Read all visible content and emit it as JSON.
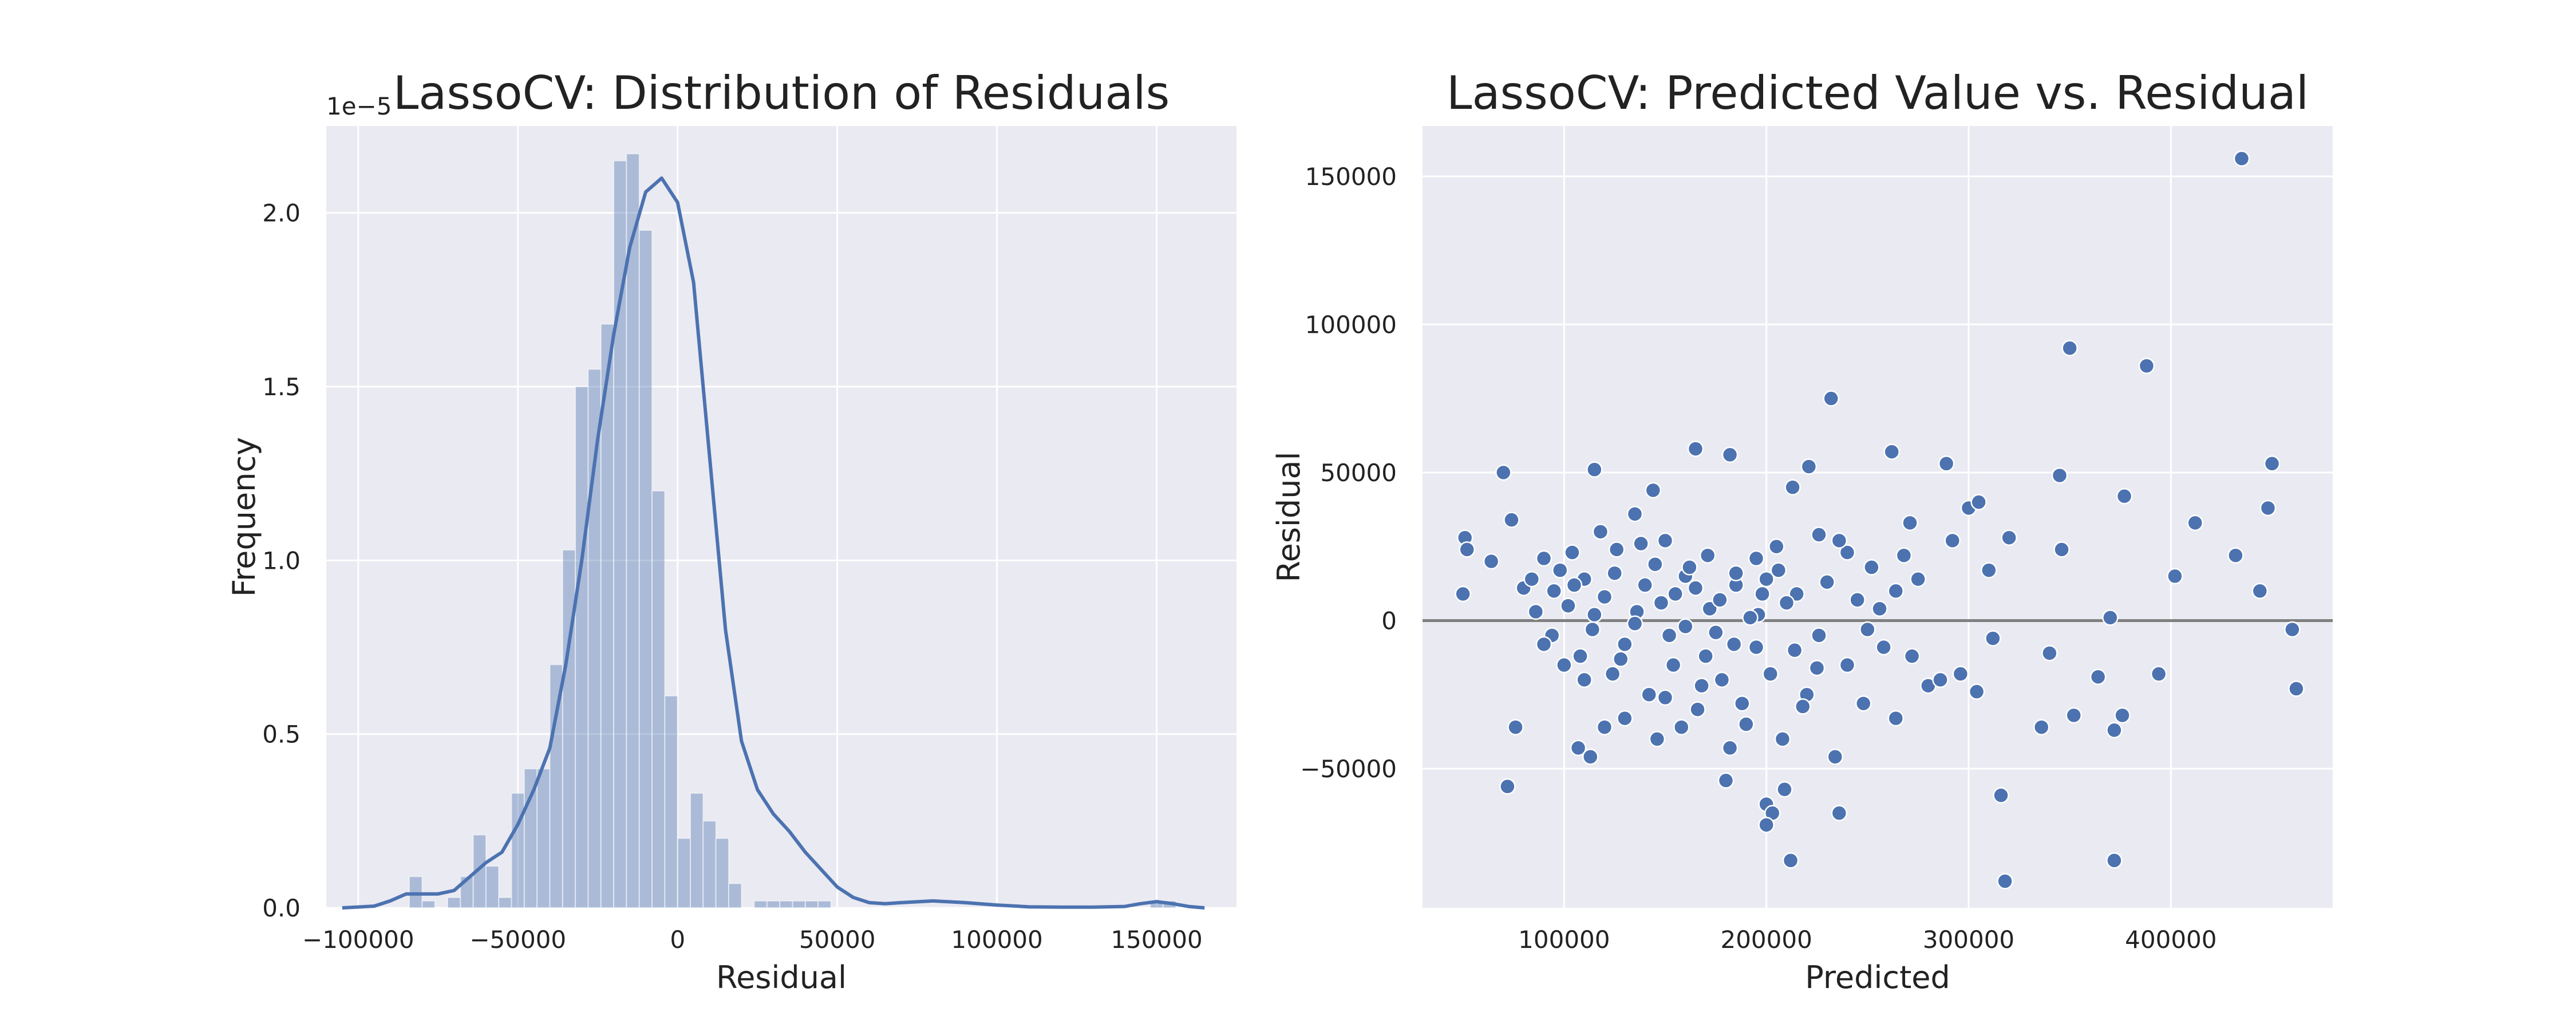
{
  "chart_data": [
    {
      "type": "histogram",
      "title": "LassoCV: Distribution of Residuals",
      "xlabel": "Residual",
      "ylabel": "Frequency",
      "y_offset_label": "1e−5",
      "xlim": [
        -110000,
        175000
      ],
      "ylim": [
        0,
        2.25
      ],
      "xticks": [
        -100000,
        -50000,
        0,
        50000,
        100000,
        150000
      ],
      "xtick_labels": [
        "−100000",
        "−50000",
        "0",
        "50000",
        "100000",
        "150000"
      ],
      "yticks": [
        0,
        0.5,
        1.0,
        1.5,
        2.0
      ],
      "ytick_labels": [
        "0.0",
        "0.5",
        "1.0",
        "1.5",
        "2.0"
      ],
      "grid": true,
      "bin_width": 4000,
      "bins": [
        {
          "start": -84000,
          "value": 0.09
        },
        {
          "start": -80000,
          "value": 0.02
        },
        {
          "start": -72000,
          "value": 0.03
        },
        {
          "start": -68000,
          "value": 0.09
        },
        {
          "start": -64000,
          "value": 0.21
        },
        {
          "start": -60000,
          "value": 0.12
        },
        {
          "start": -56000,
          "value": 0.03
        },
        {
          "start": -52000,
          "value": 0.33
        },
        {
          "start": -48000,
          "value": 0.4
        },
        {
          "start": -44000,
          "value": 0.4
        },
        {
          "start": -40000,
          "value": 0.7
        },
        {
          "start": -36000,
          "value": 1.03
        },
        {
          "start": -32000,
          "value": 1.5
        },
        {
          "start": -28000,
          "value": 1.55
        },
        {
          "start": -24000,
          "value": 1.68
        },
        {
          "start": -20000,
          "value": 2.15
        },
        {
          "start": -16000,
          "value": 2.17
        },
        {
          "start": -12000,
          "value": 1.95
        },
        {
          "start": -8000,
          "value": 1.2
        },
        {
          "start": -4000,
          "value": 0.61
        },
        {
          "start": 0,
          "value": 0.2
        },
        {
          "start": 4000,
          "value": 0.33
        },
        {
          "start": 8000,
          "value": 0.25
        },
        {
          "start": 12000,
          "value": 0.2
        },
        {
          "start": 16000,
          "value": 0.07
        },
        {
          "start": 24000,
          "value": 0.02
        },
        {
          "start": 28000,
          "value": 0.02
        },
        {
          "start": 32000,
          "value": 0.02
        },
        {
          "start": 36000,
          "value": 0.02
        },
        {
          "start": 40000,
          "value": 0.02
        },
        {
          "start": 44000,
          "value": 0.02
        },
        {
          "start": 148000,
          "value": 0.02
        },
        {
          "start": 152000,
          "value": 0.02
        }
      ],
      "kde_x": [
        -105000,
        -95000,
        -90000,
        -85000,
        -80000,
        -75000,
        -70000,
        -65000,
        -60000,
        -55000,
        -50000,
        -45000,
        -40000,
        -35000,
        -30000,
        -25000,
        -20000,
        -15000,
        -10000,
        -5000,
        0,
        5000,
        10000,
        15000,
        20000,
        25000,
        30000,
        35000,
        40000,
        45000,
        50000,
        55000,
        60000,
        65000,
        70000,
        80000,
        90000,
        100000,
        110000,
        120000,
        130000,
        140000,
        145000,
        150000,
        155000,
        160000,
        165000
      ],
      "kde_y": [
        0.0,
        0.005,
        0.02,
        0.04,
        0.04,
        0.04,
        0.05,
        0.09,
        0.13,
        0.16,
        0.24,
        0.34,
        0.46,
        0.7,
        1.0,
        1.35,
        1.65,
        1.9,
        2.06,
        2.1,
        2.03,
        1.8,
        1.3,
        0.8,
        0.48,
        0.34,
        0.27,
        0.22,
        0.16,
        0.11,
        0.06,
        0.03,
        0.015,
        0.012,
        0.015,
        0.02,
        0.015,
        0.008,
        0.003,
        0.002,
        0.002,
        0.004,
        0.012,
        0.018,
        0.012,
        0.004,
        0.0
      ],
      "colors": {
        "bar": "#4c72b0",
        "line": "#4c72b0",
        "background": "#eaeaf2",
        "grid": "#ffffff"
      }
    },
    {
      "type": "scatter",
      "title": "LassoCV: Predicted Value vs. Residual",
      "xlabel": "Predicted",
      "ylabel": "Residual",
      "xlim": [
        30000,
        480000
      ],
      "ylim": [
        -97000,
        167000
      ],
      "xticks": [
        100000,
        200000,
        300000,
        400000
      ],
      "xtick_labels": [
        "100000",
        "200000",
        "300000",
        "400000"
      ],
      "yticks": [
        -50000,
        0,
        50000,
        100000,
        150000
      ],
      "ytick_labels": [
        "−50000",
        "0",
        "50000",
        "100000",
        "150000"
      ],
      "grid": true,
      "hline": 0,
      "points": [
        [
          435000,
          156000
        ],
        [
          350000,
          92000
        ],
        [
          388000,
          86000
        ],
        [
          232000,
          75000
        ],
        [
          70000,
          50000
        ],
        [
          115000,
          51000
        ],
        [
          165000,
          58000
        ],
        [
          182000,
          56000
        ],
        [
          221000,
          52000
        ],
        [
          262000,
          57000
        ],
        [
          289000,
          53000
        ],
        [
          345000,
          49000
        ],
        [
          450000,
          53000
        ],
        [
          412000,
          33000
        ],
        [
          448000,
          38000
        ],
        [
          51000,
          28000
        ],
        [
          52000,
          24000
        ],
        [
          50000,
          9000
        ],
        [
          64000,
          20000
        ],
        [
          74000,
          34000
        ],
        [
          80000,
          11000
        ],
        [
          90000,
          21000
        ],
        [
          98000,
          17000
        ],
        [
          104000,
          23000
        ],
        [
          110000,
          14000
        ],
        [
          118000,
          30000
        ],
        [
          126000,
          24000
        ],
        [
          135000,
          36000
        ],
        [
          144000,
          44000
        ],
        [
          150000,
          27000
        ],
        [
          160000,
          15000
        ],
        [
          171000,
          22000
        ],
        [
          185000,
          12000
        ],
        [
          195000,
          21000
        ],
        [
          205000,
          25000
        ],
        [
          213000,
          45000
        ],
        [
          226000,
          29000
        ],
        [
          240000,
          23000
        ],
        [
          252000,
          18000
        ],
        [
          264000,
          10000
        ],
        [
          271000,
          33000
        ],
        [
          300000,
          38000
        ],
        [
          305000,
          40000
        ],
        [
          320000,
          28000
        ],
        [
          346000,
          24000
        ],
        [
          377000,
          42000
        ],
        [
          432000,
          22000
        ],
        [
          444000,
          10000
        ],
        [
          402000,
          15000
        ],
        [
          310000,
          17000
        ],
        [
          86000,
          3000
        ],
        [
          94000,
          -5000
        ],
        [
          102000,
          5000
        ],
        [
          108000,
          -12000
        ],
        [
          114000,
          -3000
        ],
        [
          120000,
          8000
        ],
        [
          124000,
          -18000
        ],
        [
          130000,
          -8000
        ],
        [
          136000,
          3000
        ],
        [
          142000,
          -25000
        ],
        [
          148000,
          6000
        ],
        [
          154000,
          -15000
        ],
        [
          160000,
          -2000
        ],
        [
          166000,
          -30000
        ],
        [
          172000,
          4000
        ],
        [
          178000,
          -20000
        ],
        [
          184000,
          -8000
        ],
        [
          190000,
          -35000
        ],
        [
          196000,
          2000
        ],
        [
          202000,
          -18000
        ],
        [
          208000,
          -40000
        ],
        [
          214000,
          -10000
        ],
        [
          220000,
          -25000
        ],
        [
          226000,
          -5000
        ],
        [
          234000,
          -46000
        ],
        [
          240000,
          -15000
        ],
        [
          248000,
          -28000
        ],
        [
          256000,
          4000
        ],
        [
          264000,
          -33000
        ],
        [
          272000,
          -12000
        ],
        [
          280000,
          -22000
        ],
        [
          296000,
          -18000
        ],
        [
          304000,
          -24000
        ],
        [
          312000,
          -6000
        ],
        [
          336000,
          -36000
        ],
        [
          352000,
          -32000
        ],
        [
          364000,
          -19000
        ],
        [
          372000,
          -37000
        ],
        [
          376000,
          -32000
        ],
        [
          394000,
          -18000
        ],
        [
          460000,
          -3000
        ],
        [
          462000,
          -23000
        ],
        [
          370000,
          1000
        ],
        [
          340000,
          -11000
        ],
        [
          72000,
          -56000
        ],
        [
          76000,
          -36000
        ],
        [
          107000,
          -43000
        ],
        [
          113000,
          -46000
        ],
        [
          180000,
          -54000
        ],
        [
          200000,
          -62000
        ],
        [
          203000,
          -65000
        ],
        [
          209000,
          -57000
        ],
        [
          212000,
          -81000
        ],
        [
          200000,
          -69000
        ],
        [
          236000,
          -65000
        ],
        [
          316000,
          -59000
        ],
        [
          318000,
          -88000
        ],
        [
          372000,
          -81000
        ],
        [
          105000,
          12000
        ],
        [
          125000,
          16000
        ],
        [
          145000,
          19000
        ],
        [
          165000,
          11000
        ],
        [
          185000,
          16000
        ],
        [
          200000,
          14000
        ],
        [
          215000,
          9000
        ],
        [
          95000,
          10000
        ],
        [
          115000,
          2000
        ],
        [
          135000,
          -1000
        ],
        [
          155000,
          9000
        ],
        [
          175000,
          -4000
        ],
        [
          195000,
          -9000
        ],
        [
          210000,
          6000
        ],
        [
          230000,
          13000
        ],
        [
          90000,
          -8000
        ],
        [
          110000,
          -20000
        ],
        [
          130000,
          -33000
        ],
        [
          150000,
          -26000
        ],
        [
          170000,
          -12000
        ],
        [
          188000,
          -28000
        ],
        [
          225000,
          -16000
        ],
        [
          245000,
          7000
        ],
        [
          258000,
          -9000
        ],
        [
          275000,
          14000
        ],
        [
          286000,
          -20000
        ],
        [
          140000,
          12000
        ],
        [
          152000,
          -5000
        ],
        [
          162000,
          18000
        ],
        [
          177000,
          7000
        ],
        [
          192000,
          1000
        ],
        [
          218000,
          -29000
        ],
        [
          128000,
          -13000
        ],
        [
          138000,
          26000
        ],
        [
          158000,
          -36000
        ],
        [
          182000,
          -43000
        ],
        [
          198000,
          9000
        ],
        [
          120000,
          -36000
        ],
        [
          100000,
          -15000
        ],
        [
          84000,
          14000
        ],
        [
          146000,
          -40000
        ],
        [
          168000,
          -22000
        ],
        [
          206000,
          17000
        ],
        [
          236000,
          27000
        ],
        [
          250000,
          -3000
        ],
        [
          268000,
          22000
        ],
        [
          292000,
          27000
        ]
      ],
      "colors": {
        "point": "#4c72b0",
        "point_edge": "#ffffff",
        "hline": "#808080",
        "background": "#eaeaf2",
        "grid": "#ffffff"
      }
    }
  ]
}
